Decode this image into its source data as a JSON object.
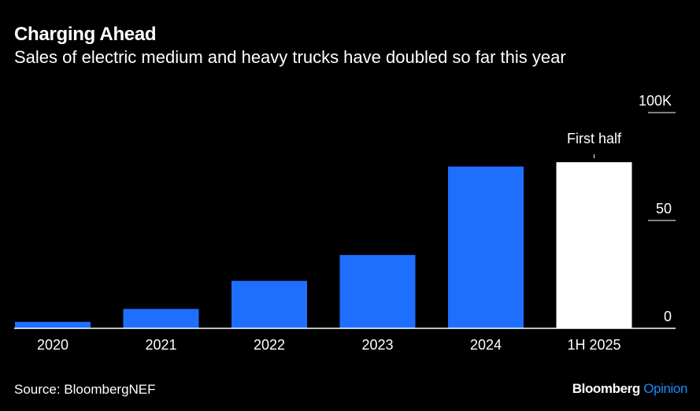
{
  "header": {
    "title": "Charging Ahead",
    "subtitle": "Sales of electric medium and heavy trucks have doubled so far this year"
  },
  "footer": {
    "source": "Source: BloombergNEF",
    "brand_name": "Bloomberg",
    "brand_suffix": "Opinion"
  },
  "colors": {
    "background": "#000000",
    "bar_primary": "#1f6fff",
    "bar_highlight": "#ffffff",
    "text": "#ffffff",
    "brand_accent": "#1a8cff"
  },
  "chart_data": {
    "type": "bar",
    "categories": [
      "2020",
      "2021",
      "2022",
      "2023",
      "2024",
      "1H 2025"
    ],
    "values": [
      3,
      9,
      22,
      34,
      75,
      77
    ],
    "units": "K",
    "ylim": [
      0,
      100
    ],
    "yticks": [
      0,
      50,
      100
    ],
    "ytick_labels": [
      "0",
      "50",
      "100K"
    ],
    "y_axis_position": "right",
    "grid": false,
    "highlight_index": 5,
    "annotation": "First half",
    "annotation_target": "1H 2025",
    "xlabel": "",
    "ylabel": ""
  }
}
